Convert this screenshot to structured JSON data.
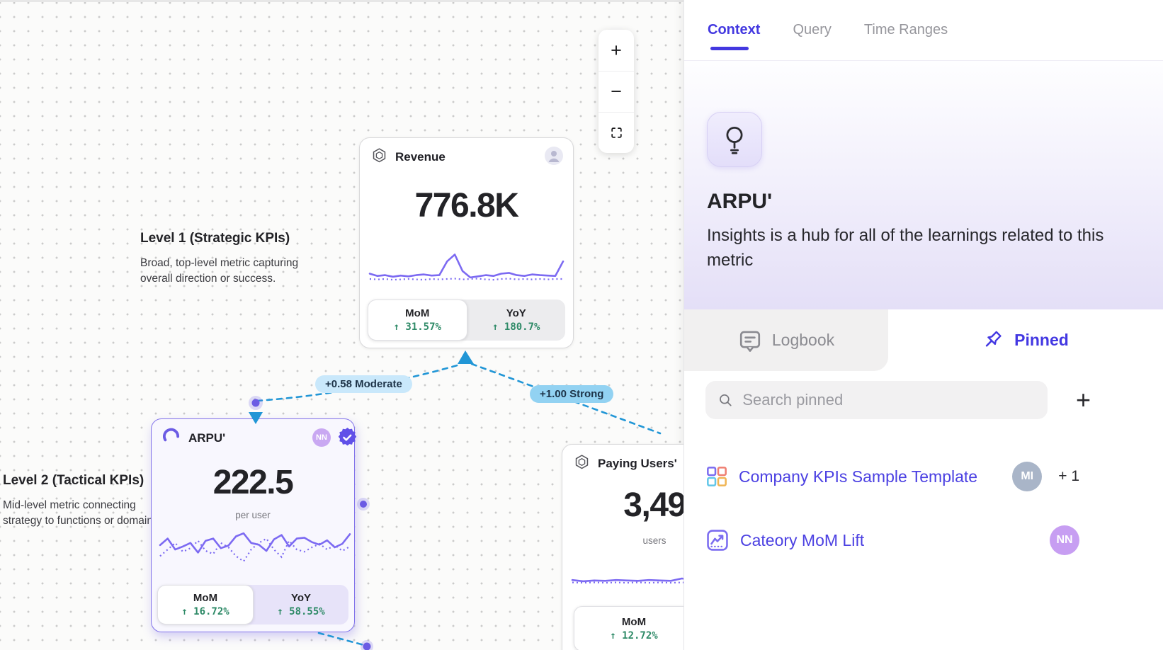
{
  "canvas": {
    "zoom_controls": {
      "zoom_in": "+",
      "zoom_out": "−"
    },
    "levels": [
      {
        "title": "Level 1 (Strategic KPIs)",
        "description": "Broad, top-level metric capturing overall direction or success."
      },
      {
        "title": "Level 2 (Tactical KPIs)",
        "description": "Mid-level metric connecting strategy to functions or domains."
      }
    ],
    "edges": [
      {
        "label": "+0.58 Moderate"
      },
      {
        "label": "+1.00 Strong"
      }
    ],
    "cards": [
      {
        "title": "Revenue",
        "value": "776.8K",
        "unit": "",
        "mom_label": "MoM",
        "mom_value": "↑ 31.57%",
        "yoy_label": "YoY",
        "yoy_value": "↑ 180.7%",
        "sparkline": [
          62,
          68,
          66,
          70,
          67,
          69,
          66,
          64,
          67,
          66,
          30,
          12,
          55,
          72,
          69,
          66,
          68,
          62,
          60,
          66,
          68,
          64,
          66,
          67,
          68,
          30
        ],
        "sparkline_dotted": [
          76,
          77,
          76,
          78,
          77,
          76,
          77,
          78,
          76,
          77,
          76,
          75,
          77,
          76,
          75,
          77,
          78,
          76,
          75,
          77,
          76,
          77,
          76,
          77,
          76,
          76
        ]
      },
      {
        "title": "ARPU'",
        "value": "222.5",
        "unit": "per user",
        "badge": "NN",
        "mom_label": "MoM",
        "mom_value": "↑ 16.72%",
        "yoy_label": "YoY",
        "yoy_value": "↑ 58.55%",
        "sparkline": [
          45,
          30,
          55,
          48,
          40,
          62,
          35,
          30,
          52,
          46,
          25,
          18,
          40,
          44,
          58,
          32,
          22,
          48,
          30,
          28,
          38,
          44,
          34,
          50,
          42,
          20
        ],
        "sparkline_dotted": [
          70,
          55,
          40,
          60,
          52,
          35,
          58,
          65,
          40,
          50,
          70,
          82,
          55,
          40,
          30,
          55,
          72,
          35,
          55,
          60,
          50,
          42,
          55,
          45,
          58,
          48
        ]
      },
      {
        "title": "Paying Users'",
        "value": "3,49",
        "unit": "users",
        "mom_label": "MoM",
        "mom_value": "↑ 12.72%",
        "sparkline": [
          70,
          73,
          71,
          72,
          70,
          71,
          72,
          70,
          71,
          72,
          66,
          70,
          35,
          8,
          60,
          72
        ],
        "sparkline_dotted": [
          76,
          77,
          76,
          77,
          76,
          77,
          76,
          77,
          76,
          77,
          76,
          77,
          76,
          77,
          77,
          76
        ]
      }
    ]
  },
  "panel": {
    "tabs": [
      {
        "label": "Context",
        "active": true
      },
      {
        "label": "Query",
        "active": false
      },
      {
        "label": "Time Ranges",
        "active": false
      }
    ],
    "metric": {
      "title": "ARPU'",
      "description": "Insights is a hub for all of the learnings related to this metric"
    },
    "subtabs": [
      {
        "label": "Logbook",
        "active": false
      },
      {
        "label": "Pinned",
        "active": true
      }
    ],
    "search": {
      "placeholder": "Search pinned"
    },
    "add_button": "+",
    "pinned_items": [
      {
        "label": "Company KPIs Sample Template",
        "avatar": "MI",
        "extra": "+ 1"
      },
      {
        "label": "Cateory MoM Lift",
        "avatar": "NN"
      }
    ]
  },
  "colors": {
    "accent": "#4338e0",
    "chart_line": "#7c6af2",
    "positive": "#2e8a67",
    "edge_line": "#2196d6",
    "moderate_pill": "#c9e8fb",
    "strong_pill": "#92d2f2",
    "arpu_border": "#8273ea"
  }
}
